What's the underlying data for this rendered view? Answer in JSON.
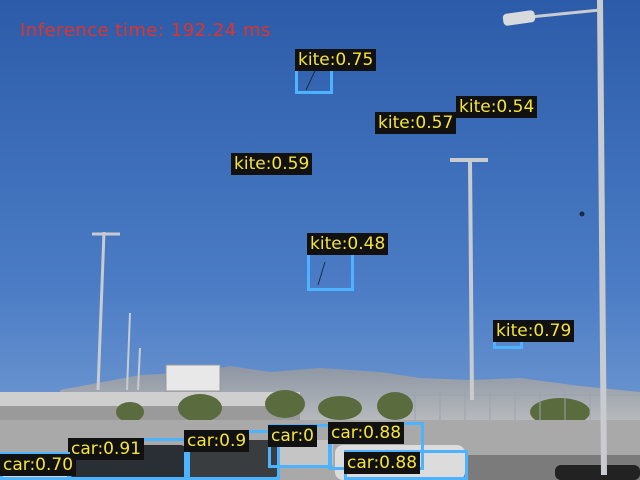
{
  "inference_text": "Inference time: 192.24 ms",
  "colors": {
    "sky_top": "#2e5fae",
    "sky_bottom": "#6c95d0",
    "box": "#4db3ff",
    "label_text": "#f5e43a",
    "label_bg": "#111111",
    "inference_text": "#e0332c"
  },
  "detections": {
    "kite_1": "kite:0.75",
    "kite_2": "kite:0.57",
    "kite_3": "kite:0.54",
    "kite_4": "kite:0.59",
    "kite_5": "kite:0.48",
    "kite_6": "kite:0.79",
    "car_1": "car:0.91",
    "car_2": "car:0.70",
    "car_3": "car:0.9",
    "car_4": "car:0",
    "car_5": "car:0.88",
    "car_6": "car:0.88"
  }
}
